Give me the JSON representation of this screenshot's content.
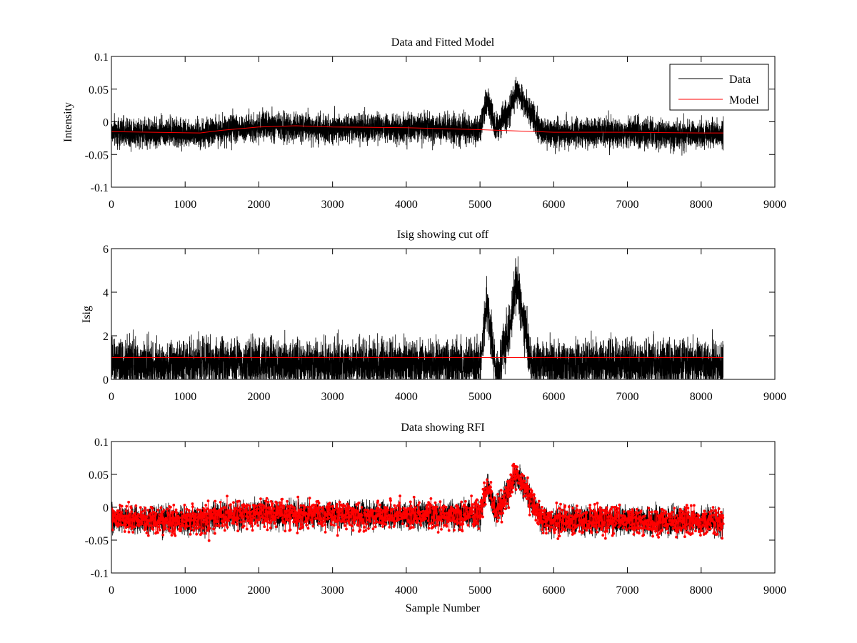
{
  "chart_data": [
    {
      "type": "line",
      "title": "Data and Fitted Model",
      "xlabel": "",
      "ylabel": "Intensity",
      "xlim": [
        0,
        9000
      ],
      "ylim": [
        -0.1,
        0.1
      ],
      "xticks": [
        0,
        1000,
        2000,
        3000,
        4000,
        5000,
        6000,
        7000,
        8000,
        9000
      ],
      "yticks": [
        -0.1,
        -0.05,
        0,
        0.05,
        0.1
      ],
      "ytick_labels": [
        "-0.1",
        "-0.05",
        "0",
        "0.05",
        "0.1"
      ],
      "legend": {
        "position": "top-right",
        "entries": [
          "Data",
          "Model"
        ]
      },
      "series": [
        {
          "name": "Data",
          "color": "#000000",
          "style": "line",
          "samples": 8300,
          "noise": 0.011,
          "baseline": [
            [
              0,
              -0.015
            ],
            [
              1200,
              -0.018
            ],
            [
              1500,
              -0.012
            ],
            [
              2000,
              -0.008
            ],
            [
              3000,
              -0.01
            ],
            [
              4000,
              -0.01
            ],
            [
              4500,
              -0.01
            ],
            [
              5000,
              -0.012
            ],
            [
              5100,
              0.038
            ],
            [
              5200,
              -0.005
            ],
            [
              5250,
              -0.01
            ],
            [
              5300,
              0.005
            ],
            [
              5380,
              0.01
            ],
            [
              5500,
              0.05
            ],
            [
              5650,
              0.02
            ],
            [
              5780,
              -0.005
            ],
            [
              5850,
              -0.018
            ],
            [
              6000,
              -0.017
            ],
            [
              7000,
              -0.017
            ],
            [
              8000,
              -0.02
            ],
            [
              8300,
              -0.02
            ]
          ]
        },
        {
          "name": "Model",
          "color": "#ff0000",
          "style": "line",
          "values": [
            [
              0,
              -0.015
            ],
            [
              1200,
              -0.017
            ],
            [
              1500,
              -0.013
            ],
            [
              2000,
              -0.008
            ],
            [
              2500,
              -0.006
            ],
            [
              3000,
              -0.008
            ],
            [
              4000,
              -0.009
            ],
            [
              5000,
              -0.012
            ],
            [
              6000,
              -0.016
            ],
            [
              7000,
              -0.016
            ],
            [
              8000,
              -0.017
            ],
            [
              8300,
              -0.017
            ]
          ]
        }
      ]
    },
    {
      "type": "line",
      "title": "Isig showing cut off",
      "xlabel": "",
      "ylabel": "Isig",
      "xlim": [
        0,
        9000
      ],
      "ylim": [
        0,
        6
      ],
      "xticks": [
        0,
        1000,
        2000,
        3000,
        4000,
        5000,
        6000,
        7000,
        8000,
        9000
      ],
      "yticks": [
        0,
        2,
        4,
        6
      ],
      "ytick_labels": [
        "0",
        "2",
        "4",
        "6"
      ],
      "series": [
        {
          "color": "#000000",
          "style": "line",
          "samples": 8300,
          "noise": 0.55,
          "baseline": [
            [
              0,
              0.7
            ],
            [
              5000,
              0.7
            ],
            [
              5100,
              3.6
            ],
            [
              5200,
              0.5
            ],
            [
              5260,
              0.2
            ],
            [
              5320,
              1.6
            ],
            [
              5400,
              2.2
            ],
            [
              5500,
              4.5
            ],
            [
              5650,
              1.6
            ],
            [
              5700,
              0.7
            ],
            [
              8300,
              0.7
            ]
          ]
        },
        {
          "color": "#ff0000",
          "style": "line",
          "values": [
            [
              0,
              1.0
            ],
            [
              8300,
              1.0
            ]
          ]
        }
      ]
    },
    {
      "type": "scatter",
      "title": "Data showing RFI",
      "xlabel": "Sample Number",
      "ylabel": "",
      "xlim": [
        0,
        9000
      ],
      "ylim": [
        -0.1,
        0.1
      ],
      "xticks": [
        0,
        1000,
        2000,
        3000,
        4000,
        5000,
        6000,
        7000,
        8000,
        9000
      ],
      "yticks": [
        -0.1,
        -0.05,
        0,
        0.05,
        0.1
      ],
      "ytick_labels": [
        "-0.1",
        "-0.05",
        "0",
        "0.05",
        "0.1"
      ],
      "series": [
        {
          "color": "#000000",
          "style": "line",
          "samples": 8300,
          "noise": 0.01,
          "baseline": [
            [
              0,
              -0.018
            ],
            [
              1200,
              -0.02
            ],
            [
              1500,
              -0.015
            ],
            [
              2000,
              -0.01
            ],
            [
              3000,
              -0.012
            ],
            [
              4000,
              -0.012
            ],
            [
              5000,
              -0.012
            ],
            [
              5100,
              0.035
            ],
            [
              5200,
              -0.005
            ],
            [
              5300,
              0.005
            ],
            [
              5500,
              0.05
            ],
            [
              5650,
              0.02
            ],
            [
              5800,
              -0.01
            ],
            [
              5850,
              -0.02
            ],
            [
              7000,
              -0.02
            ],
            [
              8300,
              -0.022
            ]
          ]
        },
        {
          "color": "#ff0000",
          "style": "markers+line",
          "marker": "dot",
          "samples": 2100,
          "noise": 0.011,
          "baseline": [
            [
              0,
              -0.018
            ],
            [
              1200,
              -0.02
            ],
            [
              1500,
              -0.015
            ],
            [
              2000,
              -0.01
            ],
            [
              3000,
              -0.012
            ],
            [
              4000,
              -0.012
            ],
            [
              5000,
              -0.012
            ],
            [
              5100,
              0.035
            ],
            [
              5200,
              -0.005
            ],
            [
              5300,
              0.005
            ],
            [
              5500,
              0.05
            ],
            [
              5650,
              0.02
            ],
            [
              5800,
              -0.01
            ],
            [
              5850,
              -0.02
            ],
            [
              7000,
              -0.02
            ],
            [
              8300,
              -0.022
            ]
          ]
        }
      ]
    }
  ]
}
